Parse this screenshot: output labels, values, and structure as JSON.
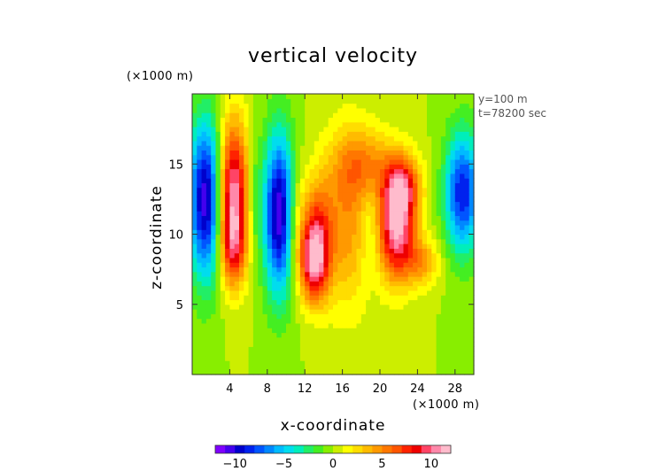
{
  "chart_data": {
    "type": "heatmap",
    "title": "vertical velocity",
    "xlabel": "x-coordinate",
    "ylabel": "z-coordinate",
    "x_unit_label": "(×1000 m)",
    "y_unit_label": "(×1000 m)",
    "annotations": [
      "y=100 m",
      "t=78200 sec"
    ],
    "xlim": [
      0,
      30
    ],
    "ylim": [
      0,
      20
    ],
    "x_ticks": [
      4,
      8,
      12,
      16,
      20,
      24,
      28
    ],
    "y_ticks": [
      5,
      10,
      15
    ],
    "colorbar": {
      "range": [
        -12,
        12
      ],
      "ticks": [
        -10,
        -5,
        0,
        5,
        10
      ],
      "colors": [
        "#7f00ff",
        "#4400ee",
        "#0000cc",
        "#0022ee",
        "#0055ff",
        "#0088ff",
        "#00bbff",
        "#00ddee",
        "#00eebb",
        "#22ee66",
        "#44ee22",
        "#88ee00",
        "#ccee00",
        "#ffff00",
        "#ffdd00",
        "#ffbb00",
        "#ff9900",
        "#ff7700",
        "#ff5500",
        "#ff2200",
        "#ee0000",
        "#ff4466",
        "#ff88aa",
        "#ffbbcc"
      ]
    },
    "field_features": [
      {
        "x": 1.5,
        "z": 12.5,
        "sx": 1.3,
        "sz": 4.0,
        "value": -11
      },
      {
        "x": 4.3,
        "z": 13.0,
        "sx": 1.2,
        "sz": 3.6,
        "value": 11
      },
      {
        "x": 4.3,
        "z": 9.0,
        "sx": 1.0,
        "sz": 2.0,
        "value": 5
      },
      {
        "x": 9.3,
        "z": 11.5,
        "sx": 1.2,
        "sz": 4.0,
        "value": -11
      },
      {
        "x": 13.0,
        "z": 8.0,
        "sx": 1.1,
        "sz": 2.0,
        "value": 10
      },
      {
        "x": 13.3,
        "z": 11.0,
        "sx": 1.1,
        "sz": 2.3,
        "value": 4.5
      },
      {
        "x": 16.5,
        "z": 11.0,
        "sx": 2.0,
        "sz": 4.5,
        "value": 4.5
      },
      {
        "x": 18.6,
        "z": 15.0,
        "sx": 2.3,
        "sz": 1.8,
        "value": 4
      },
      {
        "x": 21.8,
        "z": 10.5,
        "sx": 1.4,
        "sz": 2.6,
        "value": 11
      },
      {
        "x": 22.5,
        "z": 13.5,
        "sx": 1.3,
        "sz": 1.5,
        "value": 6
      },
      {
        "x": 24.5,
        "z": 8.0,
        "sx": 1.3,
        "sz": 1.2,
        "value": 4
      },
      {
        "x": 28.8,
        "z": 13.0,
        "sx": 1.3,
        "sz": 3.0,
        "value": -9
      },
      {
        "x": 11.0,
        "z": 11.0,
        "sx": 0.8,
        "sz": 3.0,
        "value": 3
      },
      {
        "x": 19.0,
        "z": 10.5,
        "sx": 0.8,
        "sz": 2.5,
        "value": -2
      },
      {
        "x": 6.5,
        "z": 13.0,
        "sx": 0.5,
        "sz": 3.0,
        "value": -2
      }
    ]
  }
}
